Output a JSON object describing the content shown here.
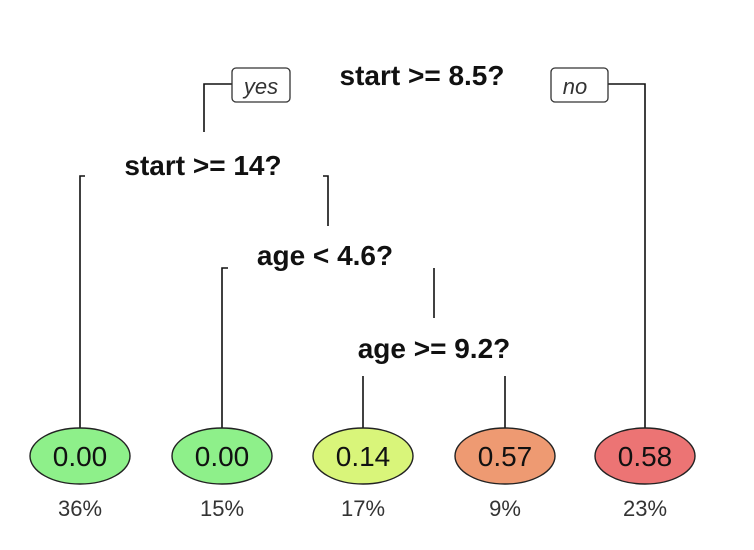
{
  "tree": {
    "branch_labels": {
      "yes": "yes",
      "no": "no"
    },
    "splits": [
      {
        "id": "root",
        "label": "start >= 8.5?"
      },
      {
        "id": "n2",
        "label": "start >= 14?"
      },
      {
        "id": "n3",
        "label": "age < 4.6?"
      },
      {
        "id": "n4",
        "label": "age >= 9.2?"
      }
    ],
    "leaves": [
      {
        "value": "0.00",
        "percent": "36%",
        "color": "#8ef08a"
      },
      {
        "value": "0.00",
        "percent": "15%",
        "color": "#8ef08a"
      },
      {
        "value": "0.14",
        "percent": "17%",
        "color": "#d9f57a"
      },
      {
        "value": "0.57",
        "percent": "9%",
        "color": "#ee9a72"
      },
      {
        "value": "0.58",
        "percent": "23%",
        "color": "#ec7474"
      }
    ]
  }
}
